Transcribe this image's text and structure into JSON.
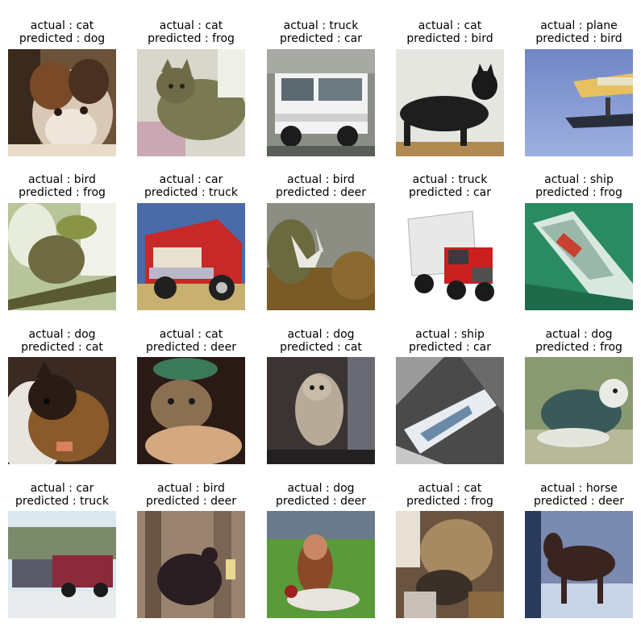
{
  "panels": [
    {
      "actual": "cat",
      "predicted": "dog",
      "icon": "cat-photo"
    },
    {
      "actual": "cat",
      "predicted": "frog",
      "icon": "cat-photo"
    },
    {
      "actual": "truck",
      "predicted": "car",
      "icon": "truck-photo"
    },
    {
      "actual": "cat",
      "predicted": "bird",
      "icon": "cat-photo"
    },
    {
      "actual": "plane",
      "predicted": "bird",
      "icon": "plane-photo"
    },
    {
      "actual": "bird",
      "predicted": "frog",
      "icon": "bird-photo"
    },
    {
      "actual": "car",
      "predicted": "truck",
      "icon": "car-photo"
    },
    {
      "actual": "bird",
      "predicted": "deer",
      "icon": "bird-photo"
    },
    {
      "actual": "truck",
      "predicted": "car",
      "icon": "truck-photo"
    },
    {
      "actual": "ship",
      "predicted": "frog",
      "icon": "ship-photo"
    },
    {
      "actual": "dog",
      "predicted": "cat",
      "icon": "dog-photo"
    },
    {
      "actual": "cat",
      "predicted": "deer",
      "icon": "cat-photo"
    },
    {
      "actual": "dog",
      "predicted": "cat",
      "icon": "dog-photo"
    },
    {
      "actual": "ship",
      "predicted": "car",
      "icon": "ship-photo"
    },
    {
      "actual": "dog",
      "predicted": "frog",
      "icon": "dog-photo"
    },
    {
      "actual": "car",
      "predicted": "truck",
      "icon": "car-photo"
    },
    {
      "actual": "bird",
      "predicted": "deer",
      "icon": "bird-photo"
    },
    {
      "actual": "dog",
      "predicted": "deer",
      "icon": "dog-photo"
    },
    {
      "actual": "cat",
      "predicted": "frog",
      "icon": "cat-photo"
    },
    {
      "actual": "horse",
      "predicted": "deer",
      "icon": "horse-photo"
    }
  ]
}
